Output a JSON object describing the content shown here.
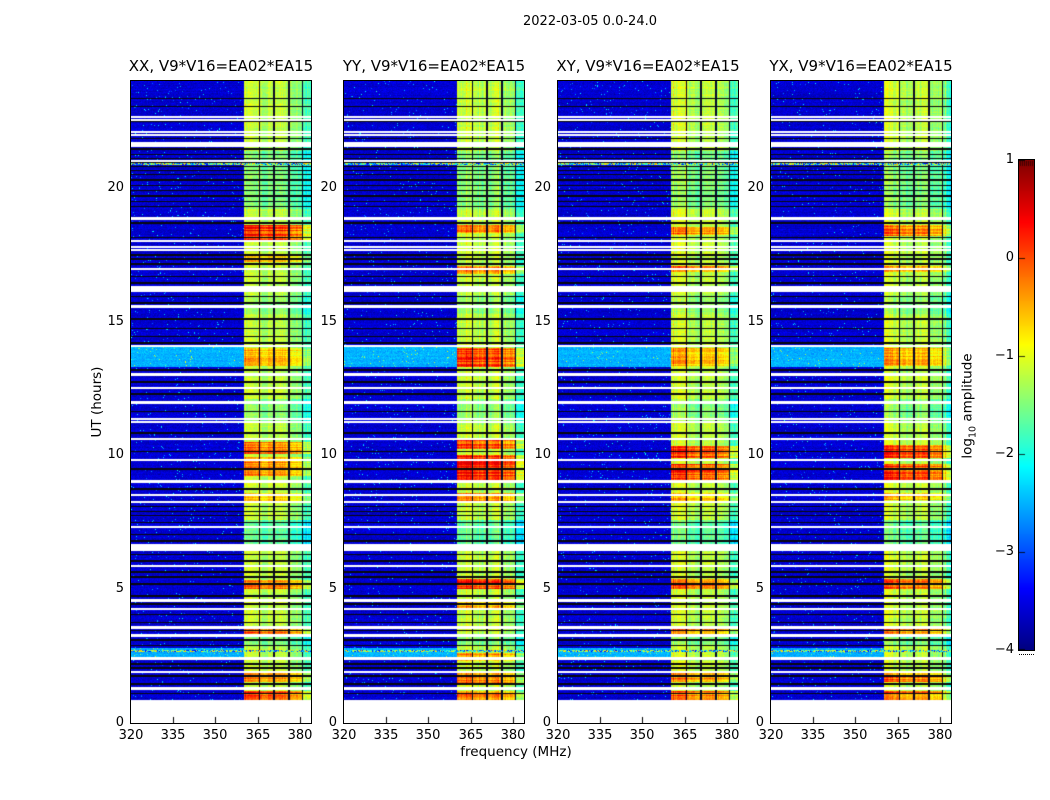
{
  "chart_data": {
    "type": "heatmap",
    "suptitle": "2022-03-05 0.0-24.0",
    "xlabel": "frequency (MHz)",
    "ylabel": "UT (hours)",
    "xlim": [
      320,
      384
    ],
    "ylim": [
      0,
      24
    ],
    "xticks": [
      320,
      335,
      350,
      365,
      380
    ],
    "yticks": [
      0,
      5,
      10,
      15,
      20
    ],
    "colormap": "jet",
    "colorbar": {
      "label_prefix": "log",
      "label_sub": "10",
      "label_suffix": " amplitude",
      "ticks": [
        1,
        0,
        -1,
        -2,
        -3,
        -4
      ],
      "clim": [
        -4,
        1
      ]
    },
    "time_start": 0.86,
    "background_level": -3.6,
    "enhanced_level": -2.5,
    "noise_sigma": 0.28,
    "enhanced_rows": [
      [
        13.3,
        14.05
      ],
      [
        2.45,
        2.8
      ]
    ],
    "speckle_rows": [
      20.9,
      2.7
    ],
    "white_gaps": [
      [
        22.66,
        0.075
      ],
      [
        22.55,
        0.075
      ],
      [
        22.08,
        0.075
      ],
      [
        21.97,
        0.075
      ],
      [
        21.62,
        0.18
      ],
      [
        21.02,
        0.075
      ],
      [
        18.87,
        0.1
      ],
      [
        18.02,
        0.075
      ],
      [
        17.8,
        0.075
      ],
      [
        17.68,
        0.075
      ],
      [
        16.97,
        0.075
      ],
      [
        16.22,
        0.22
      ],
      [
        15.57,
        0.075
      ],
      [
        14.1,
        0.075
      ],
      [
        13.02,
        0.1
      ],
      [
        12.52,
        0.075
      ],
      [
        11.97,
        0.12
      ],
      [
        11.36,
        0.075
      ],
      [
        11.24,
        0.075
      ],
      [
        10.62,
        0.1
      ],
      [
        9.82,
        0.075
      ],
      [
        9.02,
        0.1
      ],
      [
        8.52,
        0.075
      ],
      [
        8.28,
        0.075
      ],
      [
        7.32,
        0.075
      ],
      [
        6.57,
        0.25
      ],
      [
        5.87,
        0.1
      ],
      [
        4.57,
        0.1
      ],
      [
        4.27,
        0.075
      ],
      [
        3.57,
        0.075
      ],
      [
        3.27,
        0.1
      ],
      [
        2.42,
        0.1
      ],
      [
        1.92,
        0.075
      ],
      [
        1.28,
        0.1
      ]
    ],
    "black_lines": [
      23.35,
      23.05,
      22.5,
      21.85,
      21.45,
      21.25,
      21.1,
      20.95,
      20.8,
      20.65,
      20.5,
      20.3,
      20.1,
      19.9,
      19.7,
      19.5,
      19.3,
      18.7,
      18.15,
      17.5,
      17.35,
      17.15,
      16.7,
      16.45,
      15.95,
      15.7,
      15.1,
      14.75,
      14.45,
      14.2,
      13.2,
      12.75,
      12.3,
      11.65,
      10.85,
      10.15,
      9.5,
      8.75,
      8.1,
      7.9,
      7.75,
      7.5,
      7.05,
      6.8,
      6.3,
      6.05,
      5.65,
      5.45,
      5.2,
      4.75,
      4.45,
      4.05,
      3.75,
      3.45,
      3.1,
      2.9,
      2.2,
      2.05,
      1.75,
      1.45,
      1.1
    ],
    "rfi_band": {
      "f_start": 360.3,
      "boundaries": [
        365.6,
        370.9,
        376.2,
        381.0
      ],
      "segment_levels": [
        -1.1,
        -1.28,
        -1.22,
        -1.38,
        -1.85
      ],
      "segment_hot_factor": [
        1,
        0.95,
        0.9,
        0.85,
        0.55
      ],
      "cool_blocks": [
        [
          6.55,
          7.6,
          -0.45
        ],
        [
          19.2,
          21.4,
          -0.3
        ],
        [
          11.3,
          12.1,
          -0.25
        ],
        [
          15.3,
          16.0,
          -0.2
        ],
        [
          2.9,
          3.25,
          -0.3
        ]
      ]
    },
    "panels": [
      {
        "pol": "XX",
        "title": "XX, V9*V16=EA02*EA15",
        "seed": 101,
        "hot_blocks": [
          [
            18.05,
            18.6,
            1.35
          ],
          [
            17.25,
            17.55,
            0.7
          ],
          [
            13.35,
            14.0,
            0.6
          ],
          [
            10.05,
            10.5,
            0.95
          ],
          [
            9.25,
            9.95,
            0.85
          ],
          [
            8.3,
            8.6,
            0.5
          ],
          [
            5.0,
            5.35,
            0.95
          ],
          [
            3.3,
            3.6,
            1.05
          ],
          [
            1.55,
            1.95,
            0.9
          ],
          [
            0.86,
            1.2,
            1.15
          ]
        ]
      },
      {
        "pol": "YY",
        "title": "YY, V9*V16=EA02*EA15",
        "seed": 202,
        "hot_blocks": [
          [
            18.3,
            18.6,
            0.95
          ],
          [
            16.8,
            17.1,
            0.85
          ],
          [
            13.3,
            14.0,
            1.25
          ],
          [
            10.25,
            10.6,
            1.15
          ],
          [
            9.05,
            10.0,
            1.4
          ],
          [
            8.3,
            8.6,
            0.85
          ],
          [
            5.0,
            5.4,
            1.25
          ],
          [
            4.3,
            4.6,
            0.7
          ],
          [
            2.3,
            2.6,
            0.8
          ],
          [
            1.5,
            1.9,
            0.95
          ],
          [
            0.86,
            1.2,
            0.9
          ]
        ]
      },
      {
        "pol": "XY",
        "title": "XY, V9*V16=EA02*EA15",
        "seed": 303,
        "hot_blocks": [
          [
            18.25,
            18.55,
            0.85
          ],
          [
            16.85,
            17.1,
            0.9
          ],
          [
            13.35,
            14.0,
            0.65
          ],
          [
            9.9,
            10.35,
            1.15
          ],
          [
            9.05,
            9.7,
            1.25
          ],
          [
            8.3,
            8.6,
            0.55
          ],
          [
            5.0,
            5.4,
            1.05
          ],
          [
            3.3,
            3.6,
            0.85
          ],
          [
            1.55,
            1.9,
            0.85
          ],
          [
            0.86,
            1.2,
            1.0
          ]
        ]
      },
      {
        "pol": "YX",
        "title": "YX, V9*V16=EA02*EA15",
        "seed": 404,
        "hot_blocks": [
          [
            18.2,
            18.6,
            0.95
          ],
          [
            16.85,
            17.1,
            0.65
          ],
          [
            13.35,
            14.0,
            0.7
          ],
          [
            9.9,
            10.4,
            1.2
          ],
          [
            9.05,
            9.7,
            1.2
          ],
          [
            8.35,
            8.6,
            0.6
          ],
          [
            5.0,
            5.4,
            1.05
          ],
          [
            3.3,
            3.6,
            0.95
          ],
          [
            1.55,
            1.9,
            0.9
          ],
          [
            0.86,
            1.2,
            1.0
          ]
        ]
      }
    ]
  }
}
